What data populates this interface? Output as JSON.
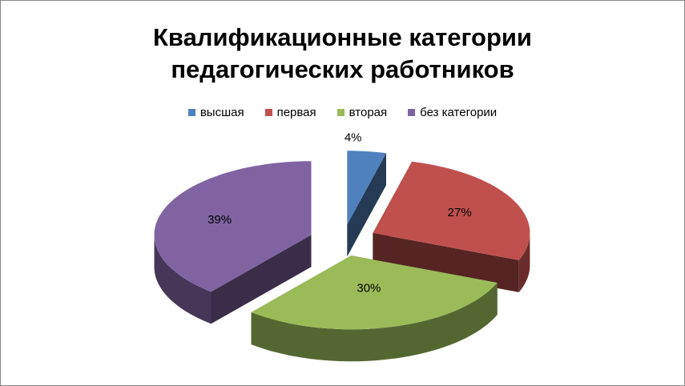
{
  "chart_data": {
    "type": "pie",
    "title_line1": "Квалификационные категории",
    "title_line2": "педагогических работников",
    "categories": [
      "высшая",
      "первая",
      "вторая",
      "без категории"
    ],
    "values": [
      4,
      27,
      30,
      39
    ],
    "labels": [
      "4%",
      "27%",
      "30%",
      "39%"
    ],
    "colors": [
      "#4f81bd",
      "#c0504d",
      "#9bbb59",
      "#8064a2"
    ],
    "exploded": true,
    "three_d": true,
    "legend_position": "top"
  }
}
